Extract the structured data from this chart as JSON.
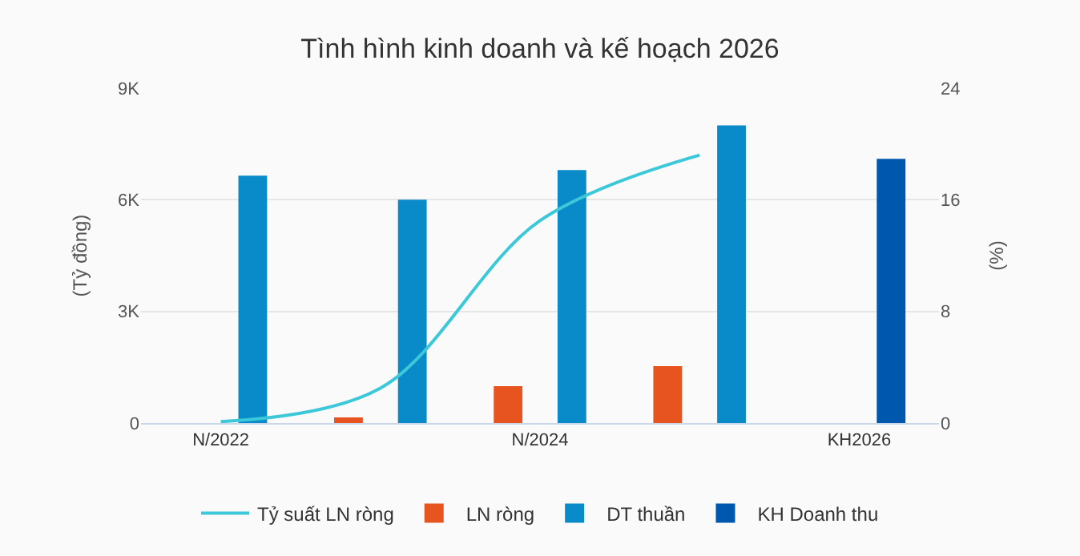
{
  "chart_data": {
    "type": "bar",
    "title": "Tình hình kinh doanh và kế hoạch 2026",
    "ylabel": "(Tỷ đồng)",
    "y2label": "(%)",
    "categories": [
      "N/2022",
      null,
      "N/2024",
      null,
      "KH2026"
    ],
    "series": [
      {
        "name": "Tỷ suất LN ròng",
        "type": "line",
        "axis": "y2",
        "color": "#3cc8d8",
        "values": [
          0.1,
          2.5,
          14.5,
          19.2,
          null
        ]
      },
      {
        "name": "LN ròng",
        "color": "#e8541f",
        "values": [
          0,
          150,
          990,
          1530,
          null
        ]
      },
      {
        "name": "DT thuần",
        "color": "#0a8bc9",
        "values": [
          6650,
          6000,
          6800,
          8000,
          null
        ]
      },
      {
        "name": "KH Doanh thu",
        "color": "#0057ae",
        "values": [
          null,
          null,
          null,
          null,
          7100
        ]
      }
    ],
    "ylim": [
      0,
      9000
    ],
    "yticks": [
      0,
      {
        "value": 3000,
        "label": "3K"
      },
      {
        "value": 6000,
        "label": "6K"
      },
      {
        "value": 9000,
        "label": "9K"
      }
    ],
    "y2lim": [
      0,
      24
    ],
    "y2ticks": [
      0,
      8,
      16,
      24
    ],
    "grid": "y",
    "legend": "bottom"
  }
}
